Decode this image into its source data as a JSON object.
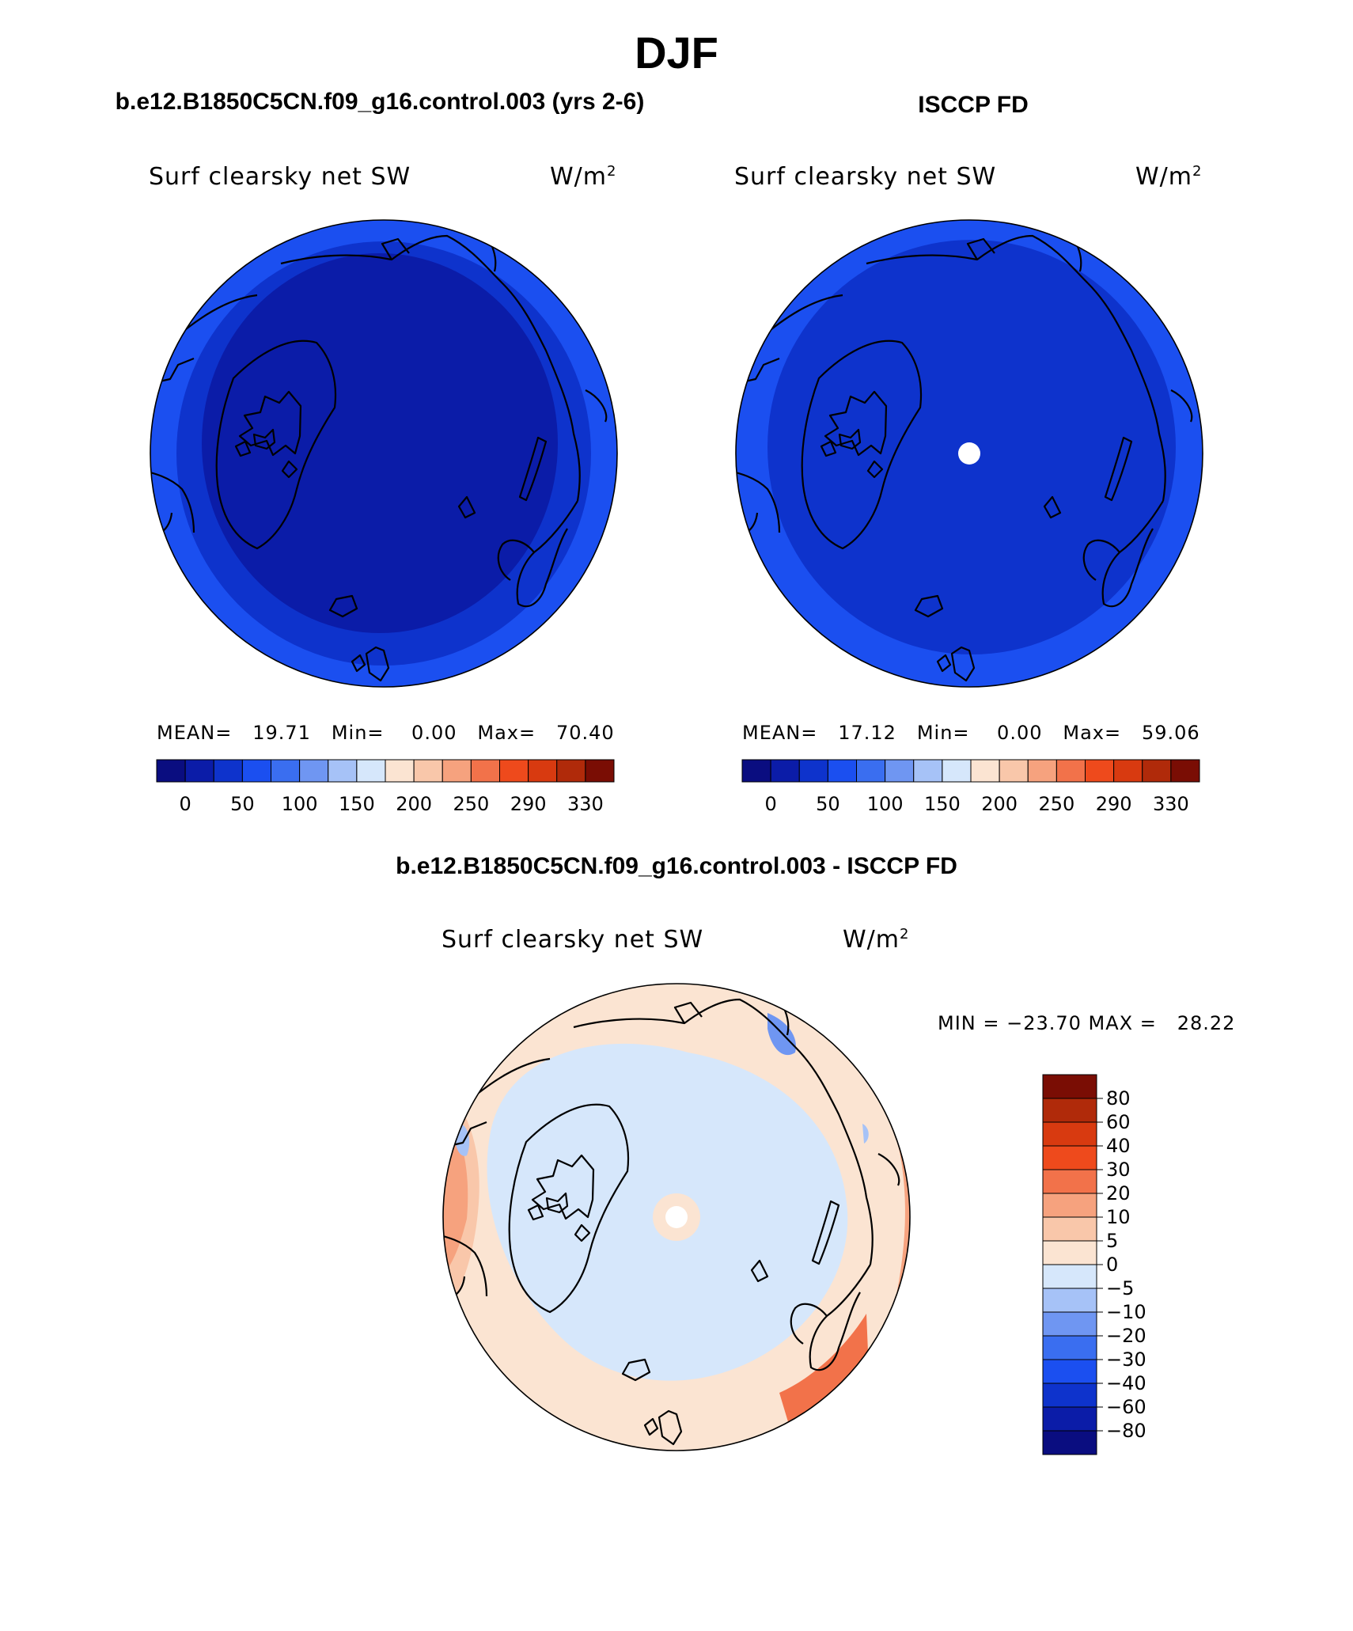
{
  "page_title": "DJF",
  "left_panel": {
    "header": "b.e12.B1850C5CN.f09_g16.control.003 (yrs 2-6)",
    "plot_title": "Surf clearsky net SW",
    "units": "W/m",
    "units_sup": "2",
    "stats": "MEAN=   19.71   Min=    0.00   Max=   70.40"
  },
  "right_panel": {
    "header": "ISCCP FD",
    "plot_title": "Surf clearsky net SW",
    "units": "W/m",
    "units_sup": "2",
    "stats": "MEAN=   17.12   Min=    0.00   Max=   59.06"
  },
  "diff_panel": {
    "header": "b.e12.B1850C5CN.f09_g16.control.003 - ISCCP FD",
    "plot_title": "Surf clearsky net SW",
    "units": "W/m",
    "units_sup": "2",
    "minmax": "MIN = −23.70 MAX =   28.22"
  },
  "top_colorbar": {
    "colors": [
      "#0a0d80",
      "#0b1ca8",
      "#0e33cc",
      "#1b4ff0",
      "#3a6ef0",
      "#6f96f2",
      "#a6c2f7",
      "#d6e7fb",
      "#fbe4d2",
      "#f9c7aa",
      "#f6a27e",
      "#f2724a",
      "#ee4a1c",
      "#d83a10",
      "#b02a0a",
      "#7a0d04"
    ],
    "tick_labels": [
      "0",
      "50",
      "100",
      "150",
      "200",
      "250",
      "290",
      "330"
    ]
  },
  "diff_colorbar": {
    "colors_top_to_bottom": [
      "#7a0d04",
      "#b02a0a",
      "#d83a10",
      "#ee4a1c",
      "#f2724a",
      "#f6a27e",
      "#f9c7aa",
      "#fbe4d2",
      "#d6e7fb",
      "#a6c2f7",
      "#6f96f2",
      "#3a6ef0",
      "#1b4ff0",
      "#0e33cc",
      "#0b1ca8",
      "#0a0d80"
    ],
    "tick_labels": [
      "80",
      "60",
      "40",
      "30",
      "20",
      "10",
      "5",
      "0",
      "−5",
      "−10",
      "−20",
      "−30",
      "−40",
      "−60",
      "−80"
    ]
  },
  "map_colors": {
    "model_outer": "#1b4ff0",
    "model_mid": "#0e33cc",
    "model_inner": "#0b1ca8",
    "obs_outer": "#1b4ff0",
    "obs_inner": "#0e33cc",
    "diff_outer": "#fbe4d2",
    "diff_inner": "#d6e7fb",
    "diff_warm": "#f6a27e",
    "diff_hot": "#f2724a",
    "diff_cool": "#a6c2f7",
    "coast": "#000000"
  }
}
